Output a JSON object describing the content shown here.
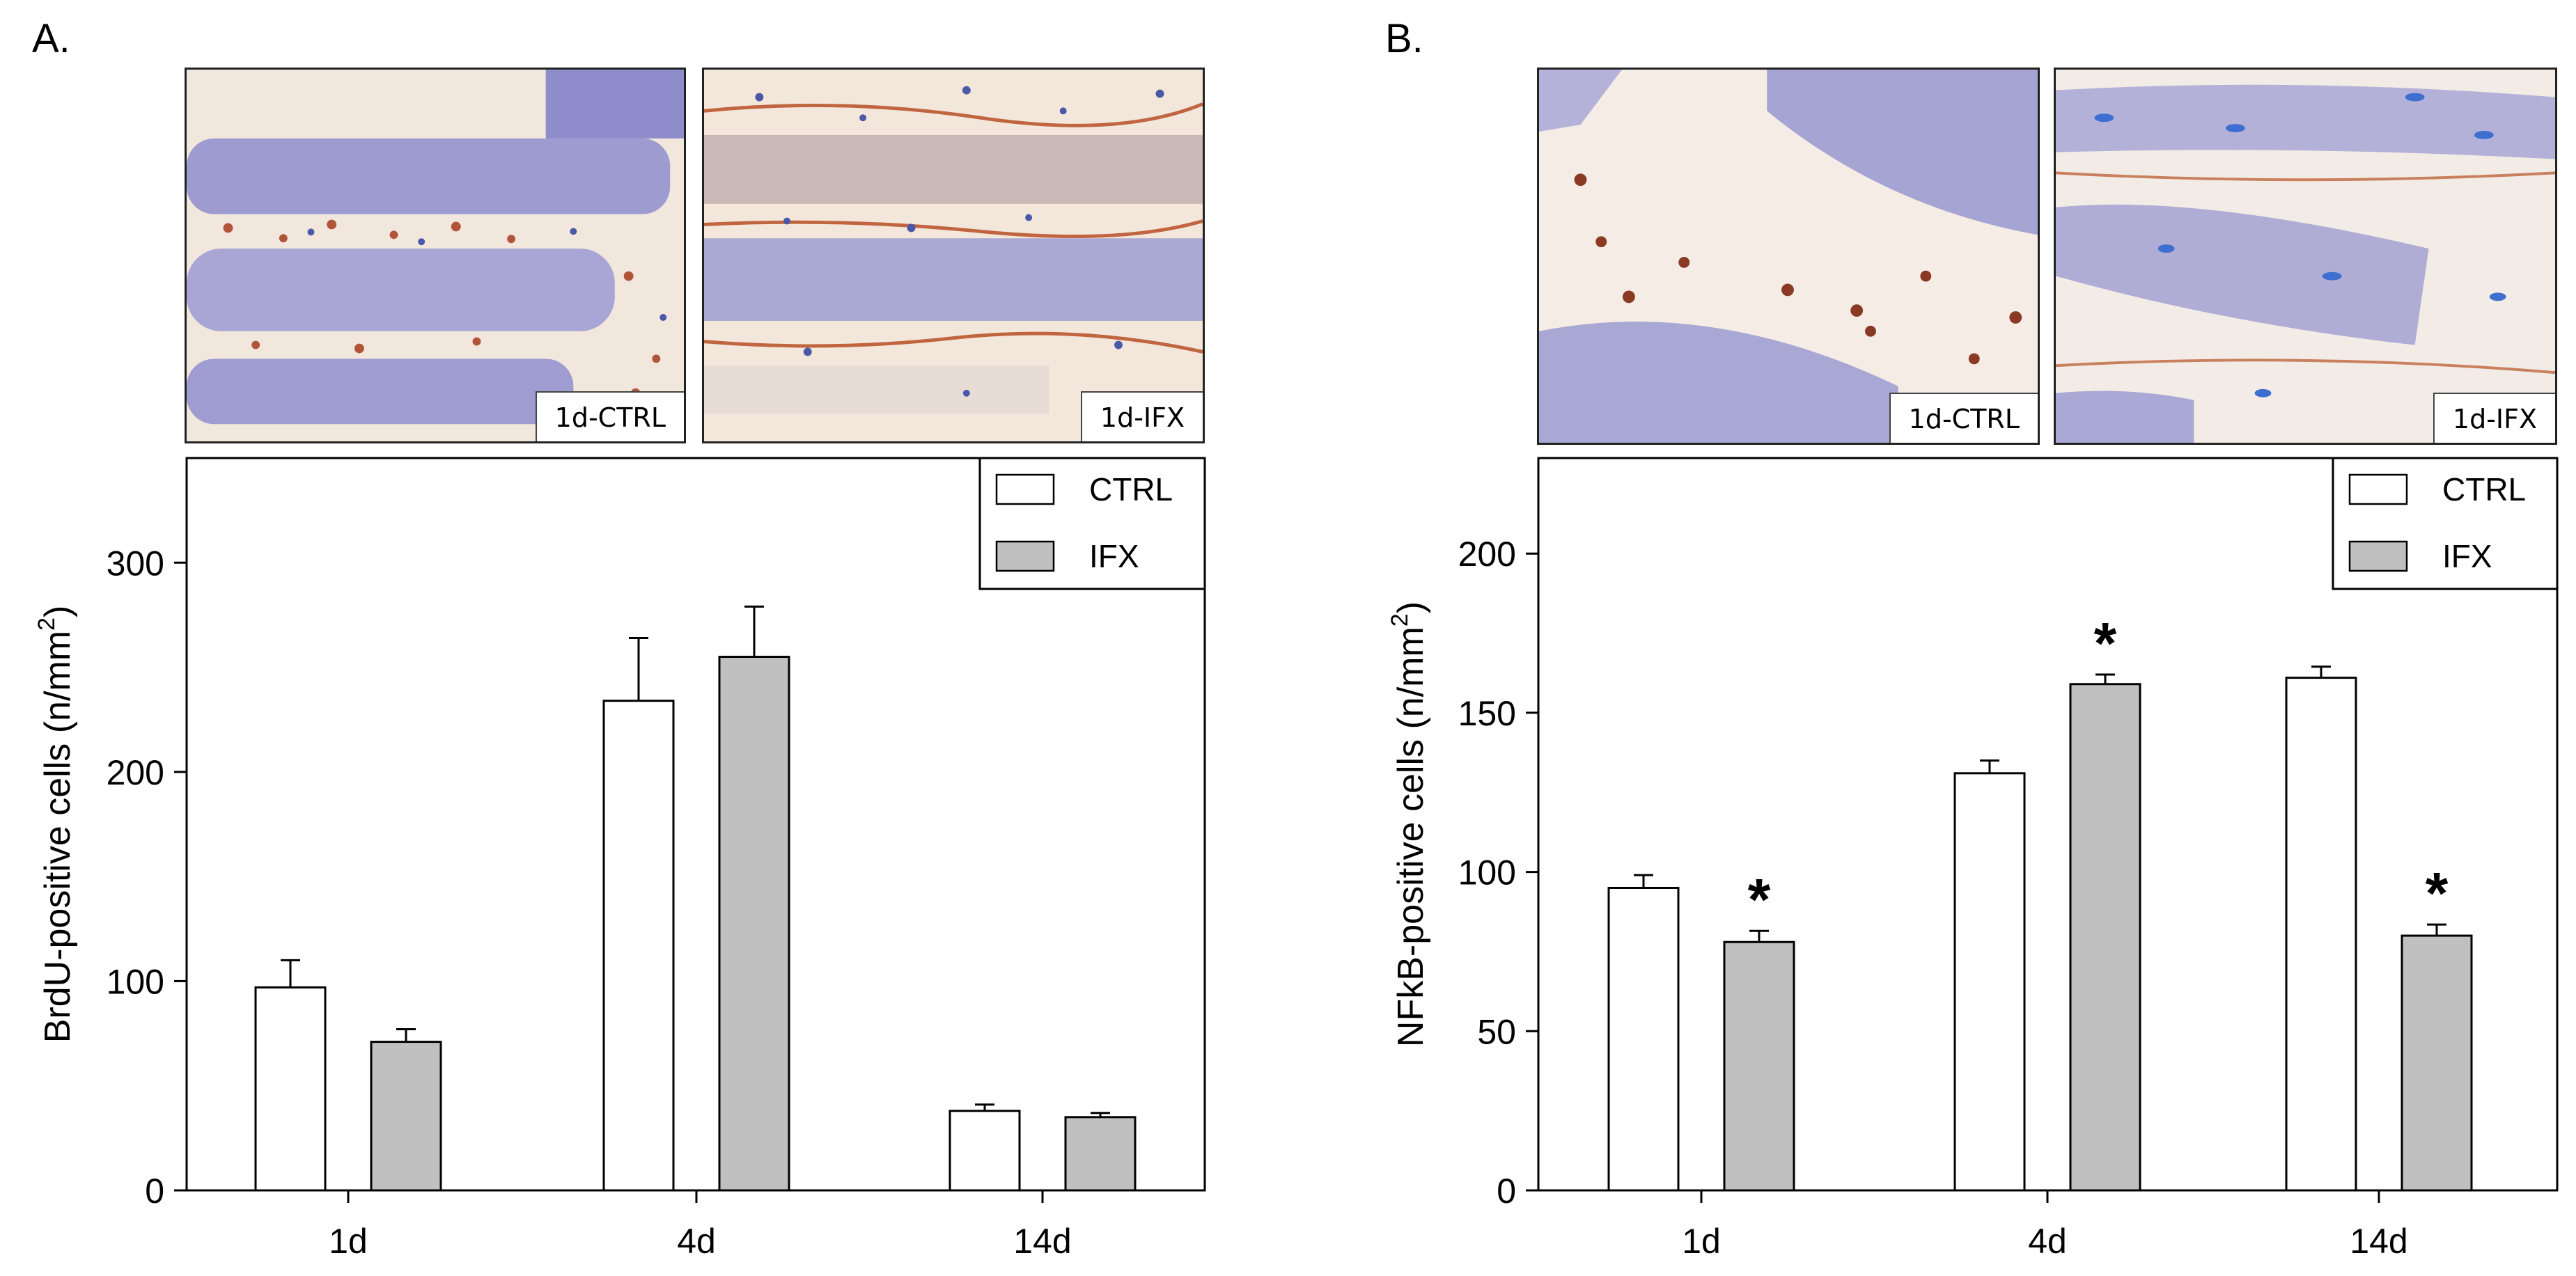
{
  "panels": [
    {
      "letter": "A.",
      "images": [
        {
          "label": "1d-CTRL"
        },
        {
          "label": "1d-IFX"
        }
      ],
      "chart_data": {
        "type": "bar",
        "categories": [
          "1d",
          "4d",
          "14d"
        ],
        "series": [
          {
            "name": "CTRL",
            "color": "#ffffff",
            "values": [
              97,
              234,
              38
            ],
            "errors": [
              13,
              30,
              3
            ]
          },
          {
            "name": "IFX",
            "color": "#c0c0c0",
            "values": [
              71,
              255,
              35
            ],
            "errors": [
              6,
              24,
              2
            ]
          }
        ],
        "ylabel_main": "BrdU-positive cells (n/mm",
        "ylabel_sup": "2",
        "ylabel_close": ")",
        "ylim": [
          0,
          350
        ],
        "yticks": [
          "0",
          "100",
          "200",
          "300"
        ],
        "significant": [],
        "legend_position": "top-right"
      }
    },
    {
      "letter": "B.",
      "images": [
        {
          "label": "1d-CTRL"
        },
        {
          "label": "1d-IFX"
        }
      ],
      "chart_data": {
        "type": "bar",
        "categories": [
          "1d",
          "4d",
          "14d"
        ],
        "series": [
          {
            "name": "CTRL",
            "color": "#ffffff",
            "values": [
              95,
              131,
              161
            ],
            "errors": [
              4,
              4,
              3.5
            ]
          },
          {
            "name": "IFX",
            "color": "#c0c0c0",
            "values": [
              78,
              159,
              80
            ],
            "errors": [
              3.5,
              3,
              3.5
            ]
          }
        ],
        "ylabel_main": "NFkB-positive cells (n/mm",
        "ylabel_sup": "2",
        "ylabel_close": ")",
        "ylim": [
          0,
          230
        ],
        "yticks": [
          "0",
          "50",
          "100",
          "150",
          "200"
        ],
        "significant": [
          "IFX-1d",
          "IFX-4d",
          "IFX-14d"
        ],
        "significance_marker": "*",
        "legend_position": "top-right"
      }
    }
  ]
}
